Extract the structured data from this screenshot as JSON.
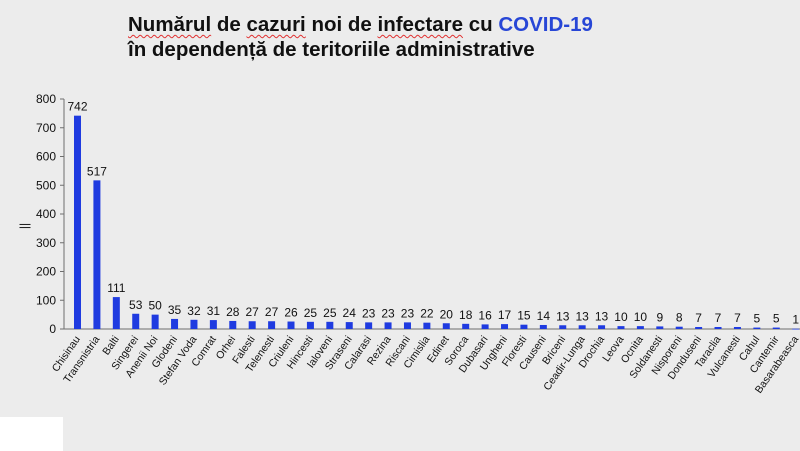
{
  "title": {
    "word1": "Numărul",
    "word2": "de",
    "word3": "cazuri",
    "word4": "noi de",
    "word5": "infectare",
    "word6": "cu",
    "accent": "COVID-19",
    "line2": "în dependență de teritoriile administrative"
  },
  "colors": {
    "bar": "#1f3be0",
    "accent": "#2746d6",
    "axis": "#6e6e6e",
    "background": "#ececec"
  },
  "chart_data": {
    "type": "bar",
    "title": "Numărul de cazuri noi de infectare cu COVID-19 în dependență de teritoriile administrative",
    "ylabel": "||",
    "xlabel": "",
    "ylim": [
      0,
      800
    ],
    "yticks": [
      0,
      100,
      200,
      300,
      400,
      500,
      600,
      700,
      800
    ],
    "grid": false,
    "legend": "none",
    "categories": [
      "Chisinau",
      "Transnistria",
      "Balti",
      "Singerei",
      "Anenii Noi",
      "Glodeni",
      "Stefan Voda",
      "Comrat",
      "Orhei",
      "Falesti",
      "Telenesti",
      "Criuleni",
      "Hincesti",
      "Ialoveni",
      "Straseni",
      "Calarasi",
      "Rezina",
      "Riscani",
      "Cimislia",
      "Edinet",
      "Soroca",
      "Dubasari",
      "Ungheni",
      "Floresti",
      "Causeni",
      "Briceni",
      "Ceadir-Lunga",
      "Drochia",
      "Leova",
      "Ocnita",
      "Soldanesti",
      "Nisporeni",
      "Donduseni",
      "Taraclia",
      "Vulcanesti",
      "Cahul",
      "Cantemir",
      "Basarabeasca"
    ],
    "values": [
      742,
      517,
      111,
      53,
      50,
      35,
      32,
      31,
      28,
      27,
      27,
      26,
      25,
      25,
      24,
      23,
      23,
      23,
      22,
      20,
      18,
      16,
      17,
      15,
      14,
      13,
      13,
      13,
      10,
      10,
      9,
      8,
      7,
      7,
      7,
      5,
      5,
      1
    ],
    "value_labels": true
  }
}
